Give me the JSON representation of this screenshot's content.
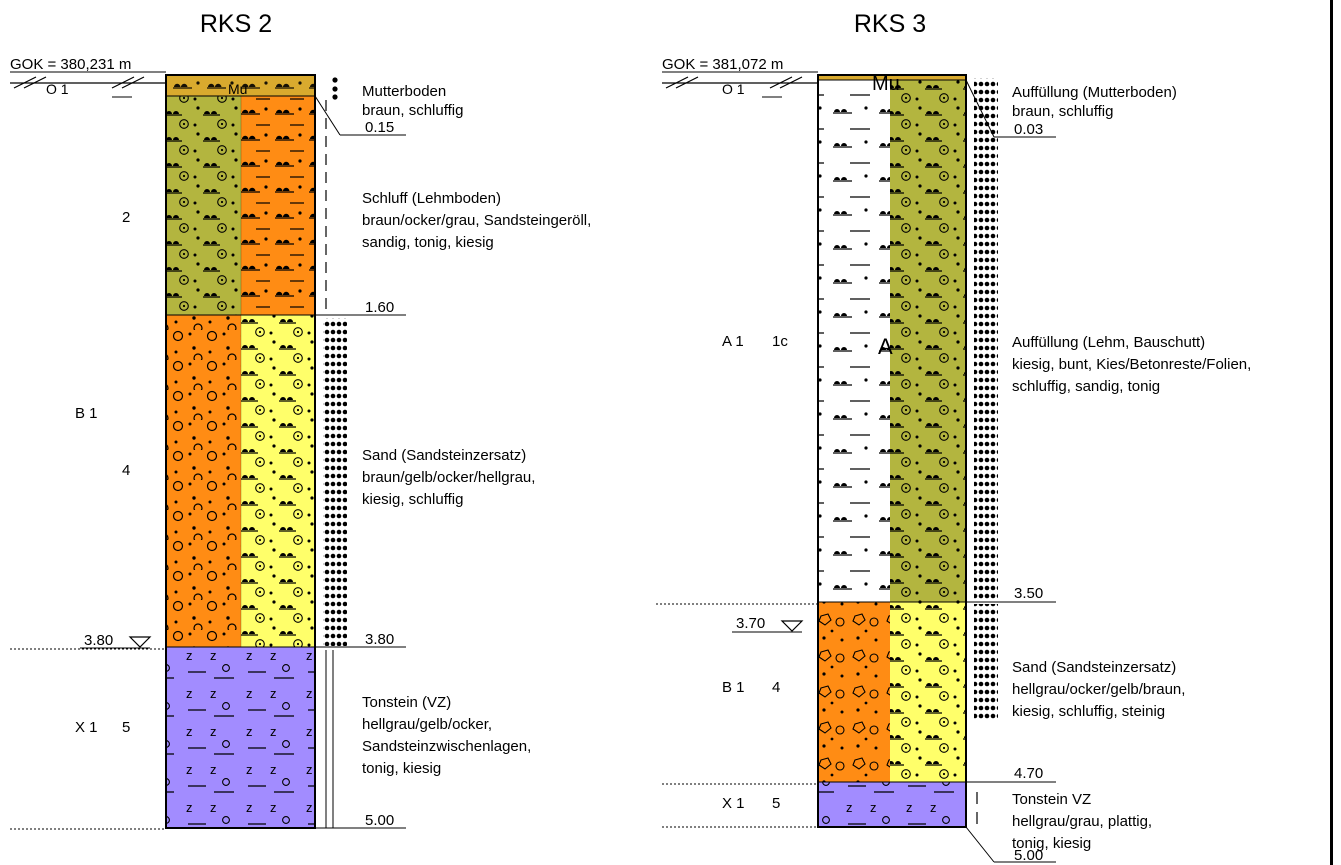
{
  "colors": {
    "mutterboden": "#d9aa2e",
    "schluff": "#b3b53f",
    "orange": "#ff8c14",
    "yellow": "#ffff6a",
    "violet": "#a28cff",
    "white": "#ffffff",
    "ink": "#000000"
  },
  "rks2": {
    "title": "RKS 2",
    "gok": "GOK = 380,231 m",
    "water_level": "3.80",
    "layers": [
      {
        "code": "O 1",
        "number": "",
        "abbr": "Mu",
        "top": 0,
        "bottom": 0.15,
        "depth_label": "0.15",
        "description": [
          "Mutterboden",
          "braun, schluffig"
        ]
      },
      {
        "code": "",
        "number": "2",
        "abbr": "",
        "top": 0.15,
        "bottom": 1.6,
        "depth_label": "1.60",
        "description": [
          "Schluff (Lehmboden)",
          "braun/ocker/grau, Sandsteingeröll,",
          "sandig, tonig, kiesig"
        ]
      },
      {
        "code": "B 1",
        "number": "4",
        "abbr": "",
        "top": 1.6,
        "bottom": 3.8,
        "depth_label": "3.80",
        "description": [
          "Sand (Sandsteinzersatz)",
          "braun/gelb/ocker/hellgrau,",
          "kiesig, schluffig"
        ]
      },
      {
        "code": "X 1",
        "number": "5",
        "abbr": "",
        "top": 3.8,
        "bottom": 5.0,
        "depth_label": "5.00",
        "description": [
          "Tonstein (VZ)",
          "hellgrau/gelb/ocker,",
          "Sandsteinzwischenlagen,",
          "tonig, kiesig"
        ]
      }
    ]
  },
  "rks3": {
    "title": "RKS 3",
    "gok": "GOK = 381,072 m",
    "water_level": "3.70",
    "layers": [
      {
        "code": "O 1",
        "number": "",
        "abbr": "Mu",
        "top": 0,
        "bottom": 0.03,
        "depth_label": "0.03",
        "description": [
          "Auffüllung (Mutterboden)",
          "braun, schluffig"
        ]
      },
      {
        "code": "A 1",
        "number": "1c",
        "abbr": "A",
        "top": 0.03,
        "bottom": 3.5,
        "depth_label": "3.50",
        "description": [
          "Auffüllung (Lehm, Bauschutt)",
          "kiesig, bunt, Kies/Betonreste/Folien,",
          "schluffig, sandig, tonig"
        ]
      },
      {
        "code": "B 1",
        "number": "4",
        "abbr": "",
        "top": 3.5,
        "bottom": 4.7,
        "depth_label": "4.70",
        "description": [
          "Sand (Sandsteinzersatz)",
          "hellgrau/ocker/gelb/braun,",
          "kiesig, schluffig, steinig"
        ]
      },
      {
        "code": "X 1",
        "number": "5",
        "abbr": "",
        "top": 4.7,
        "bottom": 5.0,
        "depth_label": "5.00",
        "description": [
          "Tonstein VZ",
          "hellgrau/grau, plattig,",
          "tonig, kiesig"
        ]
      }
    ]
  }
}
